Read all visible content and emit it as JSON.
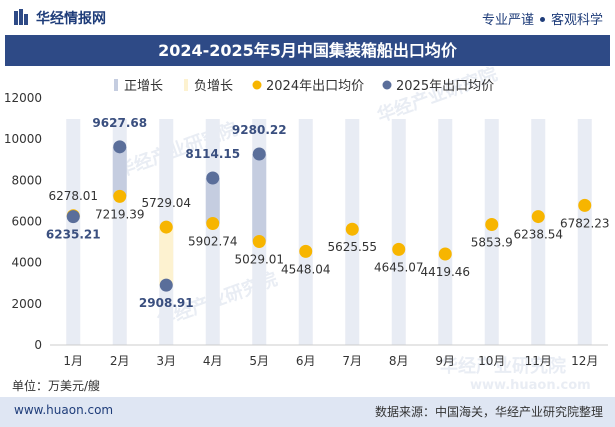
{
  "header": {
    "logo_text": "华经情报网",
    "tagline_left": "专业严谨",
    "tagline_right": "客观科学"
  },
  "title": "2024-2025年5月中国集装箱船出口均价",
  "unit_label": "单位：万美元/艘",
  "footer": {
    "website": "www.huaon.com",
    "source": "数据来源：中国海关，华经产业研究院整理"
  },
  "watermark": "华经产业研究院",
  "watermark_url": "www.huaon.com",
  "colors": {
    "positive_bar": "#c5cde0",
    "negative_bar": "#fdf2d0",
    "series_2024": "#f7b500",
    "series_2025": "#5a6e9a",
    "month_column": "#e8ecf4",
    "label_2024": "#333333",
    "label_2025": "#3a4f7f"
  },
  "chart_data": {
    "type": "scatter",
    "categories": [
      "1月",
      "2月",
      "3月",
      "4月",
      "5月",
      "6月",
      "7月",
      "8月",
      "9月",
      "10月",
      "11月",
      "12月"
    ],
    "ylim": [
      0,
      12000
    ],
    "yticks": [
      0,
      2000,
      4000,
      6000,
      8000,
      10000,
      12000
    ],
    "ytick_labels": [
      "0",
      "2000",
      "4000",
      "6000",
      "8000",
      "10000",
      "12000"
    ],
    "legend": [
      "正增长",
      "负增长",
      "2024年出口均价",
      "2025年出口均价"
    ],
    "legend_position": "top",
    "series": [
      {
        "name": "2024年出口均价",
        "values": [
          6278.01,
          7219.39,
          5729.04,
          5902.74,
          5029.01,
          4548.04,
          5625.55,
          4645.07,
          4419.46,
          5853.9,
          6238.54,
          6782.23
        ],
        "labels": [
          "6278.01",
          "7219.39",
          "5729.04",
          "5902.74",
          "5029.01",
          "4548.04",
          "5625.55",
          "4645.07",
          "4419.46",
          "5853.9",
          "6238.54",
          "6782.23"
        ]
      },
      {
        "name": "2025年出口均价",
        "values": [
          6235.21,
          9627.68,
          2908.91,
          8114.15,
          9280.22,
          null,
          null,
          null,
          null,
          null,
          null,
          null
        ],
        "labels": [
          "6235.21",
          "9627.68",
          "2908.91",
          "8114.15",
          "9280.22",
          "",
          "",
          "",
          "",
          "",
          "",
          ""
        ]
      }
    ]
  }
}
